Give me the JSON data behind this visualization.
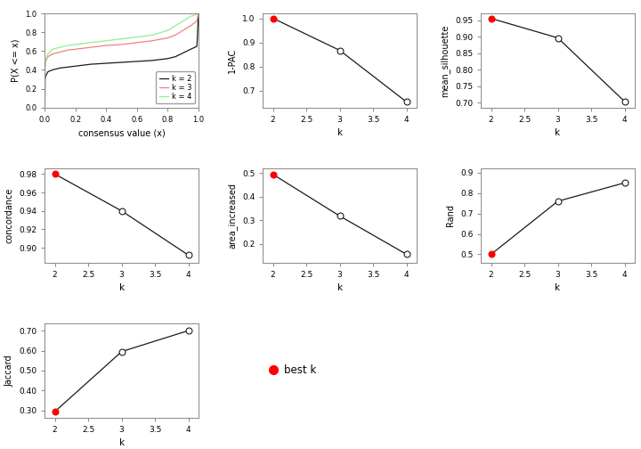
{
  "ecdf": {
    "k2": {
      "x": [
        0.0,
        0.001,
        0.005,
        0.01,
        0.02,
        0.05,
        0.1,
        0.15,
        0.2,
        0.25,
        0.3,
        0.4,
        0.5,
        0.6,
        0.7,
        0.8,
        0.85,
        0.9,
        0.95,
        0.99,
        1.0
      ],
      "y": [
        0.0,
        0.3,
        0.33,
        0.35,
        0.38,
        0.4,
        0.42,
        0.43,
        0.44,
        0.45,
        0.46,
        0.47,
        0.48,
        0.49,
        0.5,
        0.52,
        0.54,
        0.58,
        0.62,
        0.65,
        1.0
      ]
    },
    "k3": {
      "x": [
        0.0,
        0.001,
        0.005,
        0.01,
        0.02,
        0.05,
        0.1,
        0.15,
        0.2,
        0.25,
        0.3,
        0.4,
        0.5,
        0.6,
        0.7,
        0.8,
        0.85,
        0.9,
        0.95,
        0.99,
        1.0
      ],
      "y": [
        0.0,
        0.42,
        0.48,
        0.51,
        0.54,
        0.57,
        0.59,
        0.61,
        0.62,
        0.63,
        0.64,
        0.66,
        0.67,
        0.69,
        0.71,
        0.74,
        0.77,
        0.82,
        0.87,
        0.92,
        1.0
      ]
    },
    "k4": {
      "x": [
        0.0,
        0.001,
        0.005,
        0.01,
        0.02,
        0.05,
        0.1,
        0.15,
        0.2,
        0.25,
        0.3,
        0.4,
        0.5,
        0.6,
        0.7,
        0.8,
        0.85,
        0.9,
        0.95,
        0.99,
        1.0
      ],
      "y": [
        0.0,
        0.43,
        0.5,
        0.53,
        0.57,
        0.62,
        0.64,
        0.66,
        0.67,
        0.68,
        0.69,
        0.71,
        0.73,
        0.75,
        0.77,
        0.82,
        0.87,
        0.92,
        0.97,
        0.99,
        1.0
      ]
    }
  },
  "one_minus_pac": {
    "k": [
      2,
      3,
      4
    ],
    "v": [
      1.0,
      0.867,
      0.653
    ],
    "best_k": 2
  },
  "mean_silhouette": {
    "k": [
      2,
      3,
      4
    ],
    "v": [
      0.955,
      0.896,
      0.703
    ],
    "best_k": 2
  },
  "concordance": {
    "k": [
      2,
      3,
      4
    ],
    "v": [
      0.98,
      0.94,
      0.892
    ],
    "best_k": 2
  },
  "area_increased": {
    "k": [
      2,
      3,
      4
    ],
    "v": [
      0.495,
      0.318,
      0.155
    ],
    "best_k": 2
  },
  "rand": {
    "k": [
      2,
      3,
      4
    ],
    "v": [
      0.5,
      0.76,
      0.85
    ],
    "best_k": 2
  },
  "jaccard": {
    "k": [
      2,
      3,
      4
    ],
    "v": [
      0.295,
      0.595,
      0.7
    ],
    "best_k": 2
  },
  "colors": {
    "k2": "#1a1a1a",
    "k3": "#f08080",
    "k4": "#90ee90",
    "best_k_dot": "#ff0000",
    "other_dot": "#ffffff",
    "line": "#1a1a1a"
  },
  "bg_color": "#ffffff",
  "ax_bg_color": "#ffffff"
}
